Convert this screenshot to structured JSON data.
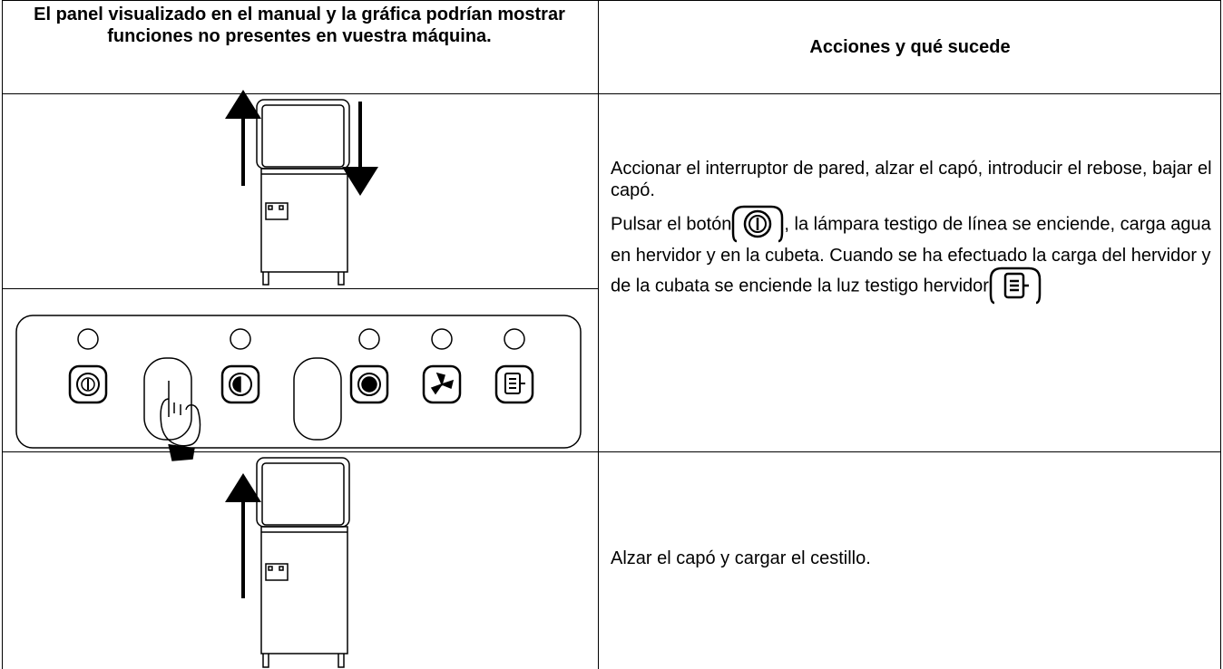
{
  "table": {
    "header": [
      "El panel visualizado en el manual y la gráfica podrían mostrar funciones no presentes en vuestra máquina.",
      "Acciones y qué sucede"
    ],
    "rows": [
      {
        "text": [
          "Accionar el interruptor de pared, alzar el capó, introducir el rebose, bajar el capó.",
          "Pulsar el botón",
          ", la lámpara testigo de línea se enciende, carga agua en hervidor y en la cubeta. Cuando se ha efectuado la carga del hervidor y de la cubata se enciende la luz testigo hervidor"
        ]
      },
      {
        "text": [
          "Alzar el capó y cargar el cestillo."
        ]
      }
    ]
  }
}
